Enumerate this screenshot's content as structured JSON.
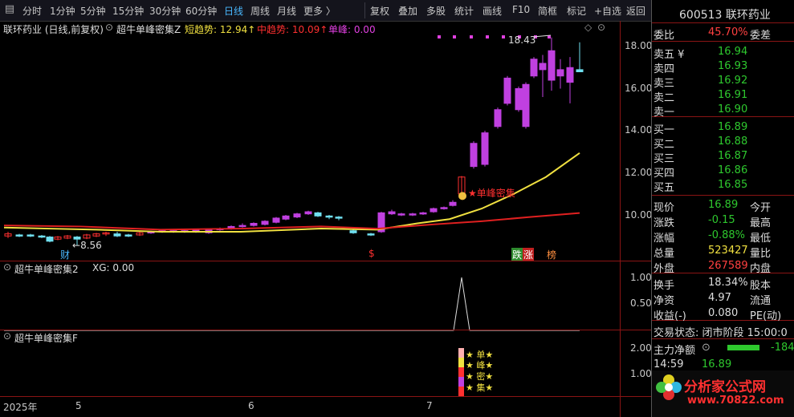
{
  "toolbar": {
    "periods": [
      "分时",
      "1分钟",
      "5分钟",
      "15分钟",
      "30分钟",
      "60分钟",
      "日线",
      "周线",
      "月线",
      "更多 〉"
    ],
    "tools": [
      "复权",
      "叠加",
      "多股",
      "统计",
      "画线",
      "F10",
      "简框",
      "标记",
      "+自选",
      "返回"
    ]
  },
  "main_panel": {
    "stock_title": "联环药业 (日线,前复权)",
    "indicator_name": "超牛单峰密集Z",
    "short_trend": "短趋势: 12.94↑",
    "mid_trend": "中趋势: 10.09↑",
    "single_peak": "单峰: 0.00",
    "high_label": "18.43",
    "low_label": "8.56",
    "signal_label": "★单峰密集",
    "cai_label": "财",
    "s_label": "$",
    "die_label": "跌",
    "zhang_label": "涨",
    "bang_label": "榜",
    "y_ticks": [
      "18.00",
      "16.00",
      "14.00",
      "12.00",
      "10.00"
    ]
  },
  "xg_panel": {
    "name": "超牛单峰密集2",
    "xg": "XG: 0.00",
    "y_ticks": [
      "1.00",
      "0.50"
    ]
  },
  "f_panel": {
    "name": "超牛单峰密集F",
    "y_ticks": [
      "2.00",
      "1.00"
    ],
    "signal_chars": [
      "★ 单★",
      "★ 峰★",
      "★ 密★",
      "★ 集★"
    ]
  },
  "x_axis": [
    "2025年",
    "5",
    "6",
    "7"
  ],
  "quote": {
    "code_name": "600513 联环药业",
    "weibi_label": "委比",
    "weibi_value": "45.70%",
    "weicha_label": "委差",
    "asks": [
      {
        "label": "卖五 ¥",
        "price": "16.94"
      },
      {
        "label": "卖四",
        "price": "16.93"
      },
      {
        "label": "卖三",
        "price": "16.92"
      },
      {
        "label": "卖二",
        "price": "16.91"
      },
      {
        "label": "卖一",
        "price": "16.90"
      }
    ],
    "bids": [
      {
        "label": "买一",
        "price": "16.89"
      },
      {
        "label": "买二",
        "price": "16.88"
      },
      {
        "label": "买三",
        "price": "16.87"
      },
      {
        "label": "买四",
        "price": "16.86"
      },
      {
        "label": "买五",
        "price": "16.85"
      }
    ],
    "stats": [
      {
        "l": "现价",
        "v": "16.89",
        "r": "今开",
        "c": "grn"
      },
      {
        "l": "涨跌",
        "v": "-0.15",
        "r": "最高",
        "c": "grn"
      },
      {
        "l": "涨幅",
        "v": "-0.88%",
        "r": "最低",
        "c": "grn"
      },
      {
        "l": "总量",
        "v": "523427",
        "r": "量比",
        "c": "yel"
      },
      {
        "l": "外盘",
        "v": "267589",
        "r": "内盘",
        "c": "red"
      }
    ],
    "stats2": [
      {
        "l": "换手",
        "v": "18.34%",
        "r": "股本"
      },
      {
        "l": "净资",
        "v": "4.97",
        "r": "流通"
      },
      {
        "l": "收益(-)",
        "v": "0.080",
        "r": "PE(动)"
      }
    ],
    "trade_state": "交易状态: 闭市阶段 15:00:0",
    "main_net_label": "主力净额",
    "main_net_value": "-184",
    "tick_time": "14:59",
    "tick_price": "16.89",
    "watermark_title": "分析家公式网",
    "watermark_url": "www.70822.com"
  },
  "colors": {
    "up": "#c040e0",
    "down": "#ff3030",
    "cyan": "#70e0f0",
    "yellow": "#f0e040",
    "redline": "#e02020"
  }
}
